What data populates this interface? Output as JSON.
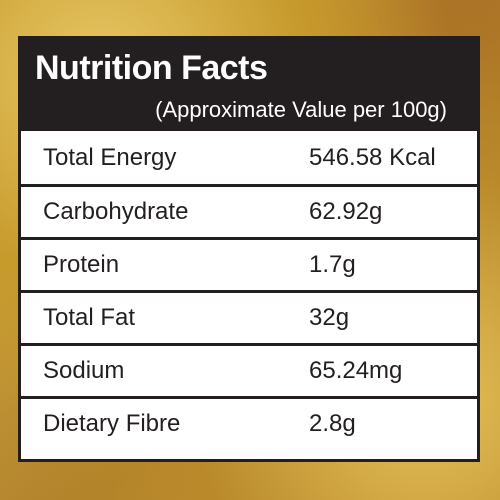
{
  "header": {
    "title": "Nutrition Facts",
    "subtitle": "(Approximate Value per 100g)"
  },
  "table": {
    "rows": [
      [
        "Total Energy",
        "546.58 Kcal"
      ],
      [
        "Carbohydrate",
        "62.92g"
      ],
      [
        "Protein",
        "1.7g"
      ],
      [
        "Total Fat",
        "32g"
      ],
      [
        "Sodium",
        "65.24mg"
      ],
      [
        "Dietary Fibre",
        "2.8g"
      ]
    ]
  }
}
